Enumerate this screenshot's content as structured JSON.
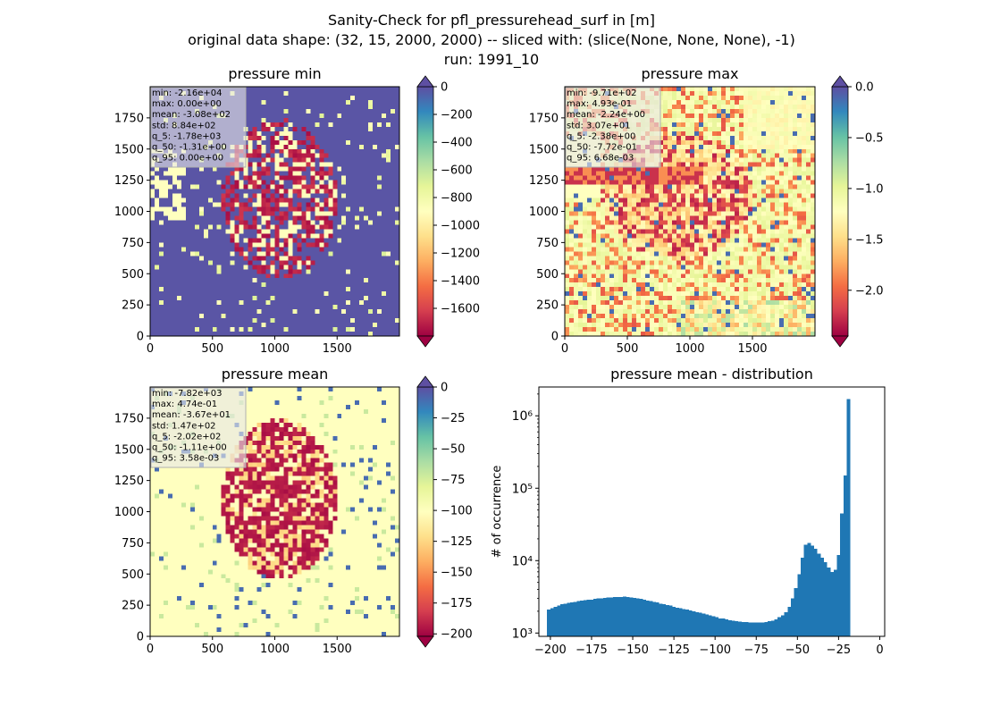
{
  "figure": {
    "suptitle": [
      "Sanity-Check for pfl_pressurehead_surf in [m]",
      "original data shape: (32, 15, 2000, 2000) -- sliced with: (slice(None, None, None), -1)",
      "run: 1991_10"
    ]
  },
  "colormap": "Spectral",
  "chart_data": [
    {
      "type": "heatmap",
      "title": "pressure min",
      "xlim": [
        0,
        2000
      ],
      "ylim": [
        0,
        2000
      ],
      "xticks": [
        0,
        500,
        1000,
        1500
      ],
      "yticks": [
        0,
        250,
        500,
        750,
        1000,
        1250,
        1500,
        1750
      ],
      "colorbar": {
        "vmin": -1800,
        "vmax": 0,
        "ticks": [
          0,
          -200,
          -400,
          -600,
          -800,
          -1000,
          -1200,
          -1400,
          -1600
        ],
        "labels": [
          "0",
          "−200",
          "−400",
          "−600",
          "−800",
          "−1000",
          "−1200",
          "−1400",
          "−1600"
        ],
        "extend": "both"
      },
      "stats": [
        "min: -2.16e+04",
        "max: 0.00e+00",
        "mean: -3.08e+02",
        "std: 8.84e+02",
        "q_5: -1.78e+03",
        "q_50: -1.31e+00",
        "q_95: 0.00e+00"
      ]
    },
    {
      "type": "heatmap",
      "title": "pressure max",
      "xlim": [
        0,
        2000
      ],
      "ylim": [
        0,
        2000
      ],
      "xticks": [
        0,
        500,
        1000,
        1500
      ],
      "yticks": [
        0,
        250,
        500,
        750,
        1000,
        1250,
        1500,
        1750
      ],
      "colorbar": {
        "vmin": -2.45,
        "vmax": 0.0,
        "ticks": [
          0.0,
          -0.5,
          -1.0,
          -1.5,
          -2.0
        ],
        "labels": [
          "0.0",
          "−0.5",
          "−1.0",
          "−1.5",
          "−2.0"
        ],
        "extend": "both"
      },
      "stats": [
        "min: -9.71e+02",
        "max: 4.93e-01",
        "mean: -2.24e+00",
        "std: 3.07e+01",
        "q_5: -2.38e+00",
        "q_50: -7.72e-01",
        "q_95: 6.68e-03"
      ]
    },
    {
      "type": "heatmap",
      "title": "pressure mean",
      "xlim": [
        0,
        2000
      ],
      "ylim": [
        0,
        2000
      ],
      "xticks": [
        0,
        500,
        1000,
        1500
      ],
      "yticks": [
        0,
        250,
        500,
        750,
        1000,
        1250,
        1500,
        1750
      ],
      "colorbar": {
        "vmin": -202,
        "vmax": 0,
        "ticks": [
          0,
          -25,
          -50,
          -75,
          -100,
          -125,
          -150,
          -175,
          -200
        ],
        "labels": [
          "0",
          "−25",
          "−50",
          "−75",
          "−100",
          "−125",
          "−150",
          "−175",
          "−200"
        ],
        "extend": "both"
      },
      "stats": [
        "min: -7.82e+03",
        "max: 4.74e-01",
        "mean: -3.67e+01",
        "std: 1.47e+02",
        "q_5: -2.02e+02",
        "q_50: -1.11e+00",
        "q_95: 3.58e-03"
      ]
    },
    {
      "type": "bar",
      "title": "pressure mean - distribution",
      "ylabel": "# of occurrence",
      "yscale": "log",
      "xlim": [
        -207,
        3
      ],
      "ylim": [
        900,
        2500000
      ],
      "xticks": [
        -200,
        -175,
        -150,
        -125,
        -100,
        -75,
        -50,
        -25,
        0
      ],
      "xticklabels": [
        "−200",
        "−175",
        "−150",
        "−125",
        "−100",
        "−75",
        "−50",
        "−25",
        "0"
      ],
      "yticks": [
        1000,
        10000,
        100000,
        1000000
      ],
      "yticklabels": [
        "10³",
        "10⁴",
        "10⁵",
        "10⁶"
      ],
      "color": "#1f77b4",
      "bin_width": 2,
      "x_start": -202,
      "values": [
        2100,
        2200,
        2300,
        2400,
        2500,
        2550,
        2600,
        2650,
        2700,
        2750,
        2800,
        2850,
        2900,
        2900,
        2950,
        3000,
        3000,
        3050,
        3100,
        3100,
        3150,
        3150,
        3150,
        3200,
        3150,
        3100,
        3050,
        3000,
        2950,
        2900,
        2800,
        2750,
        2700,
        2650,
        2550,
        2500,
        2450,
        2400,
        2300,
        2250,
        2200,
        2150,
        2100,
        2050,
        2000,
        1950,
        1900,
        1850,
        1800,
        1750,
        1700,
        1650,
        1600,
        1600,
        1550,
        1500,
        1480,
        1460,
        1440,
        1420,
        1410,
        1400,
        1400,
        1400,
        1400,
        1400,
        1420,
        1450,
        1480,
        1550,
        1650,
        1750,
        1950,
        2300,
        3000,
        4200,
        6500,
        11000,
        16500,
        17500,
        16000,
        14500,
        12500,
        11000,
        9500,
        8000,
        7000,
        7500,
        12000,
        45000,
        150000,
        1700000
      ]
    }
  ]
}
